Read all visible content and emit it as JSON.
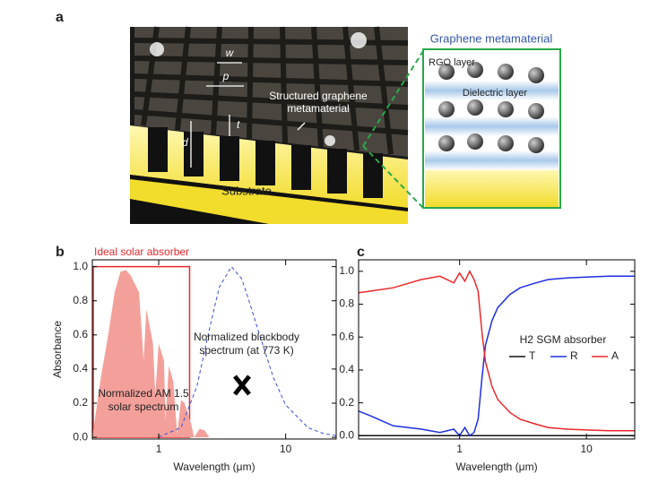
{
  "figure_a": {
    "panel": "a",
    "w": "w",
    "p": "p",
    "t": "t",
    "d": "d",
    "structured": [
      "Structured graphene",
      "metamaterial"
    ],
    "substrate": "Substrate",
    "inset_title": "Graphene metamaterial",
    "rgo": "RGO layer",
    "dielectric": "Dielectric layer"
  },
  "chart_data": [
    {
      "type": "line",
      "panel": "b",
      "xlabel": "Wavelength (μm)",
      "ylabel": "Absorbance",
      "xscale": "log",
      "xlim": [
        0.3,
        25
      ],
      "ylim": [
        -0.01,
        1.04
      ],
      "xticks": [
        1,
        10
      ],
      "yticks": [
        {
          "value": 0,
          "label": "0.0"
        },
        {
          "value": 0.2,
          "label": "0.2"
        },
        {
          "value": 0.4,
          "label": "0.4"
        },
        {
          "value": 0.6,
          "label": "0.6"
        },
        {
          "value": 0.8,
          "label": "0.8"
        },
        {
          "value": 1,
          "label": "1.0"
        }
      ],
      "ideal_absorber": {
        "label": "Ideal solar absorber",
        "x_edge": 1.75,
        "value": 1.0,
        "color": "#e8282b"
      },
      "annotations": [
        [
          "Normalized blackbody",
          "spectrum (at 773 K)"
        ],
        [
          "Normalized AM 1.5",
          "solar spectrum"
        ]
      ],
      "series": [
        {
          "style": "area",
          "color": "#f4a09a",
          "x": [
            0.3,
            0.35,
            0.4,
            0.45,
            0.5,
            0.55,
            0.6,
            0.7,
            0.76,
            0.8,
            0.9,
            0.94,
            1.0,
            1.1,
            1.13,
            1.2,
            1.3,
            1.4,
            1.5,
            1.6,
            1.8,
            1.9,
            2.1,
            2.3,
            2.5
          ],
          "values": [
            0,
            0.35,
            0.6,
            0.85,
            0.97,
            0.98,
            0.95,
            0.85,
            0.45,
            0.75,
            0.55,
            0.25,
            0.55,
            0.45,
            0.1,
            0.42,
            0.33,
            0.02,
            0.22,
            0.2,
            0.08,
            0,
            0.05,
            0.04,
            0
          ]
        },
        {
          "style": "dashed",
          "color": "#3a4fd6",
          "x": [
            1,
            1.5,
            2,
            2.5,
            3,
            3.75,
            4.5,
            5,
            6,
            8,
            10,
            15,
            20,
            25
          ],
          "values": [
            0.001,
            0.057,
            0.3,
            0.63,
            0.88,
            1.0,
            0.93,
            0.83,
            0.64,
            0.35,
            0.19,
            0.056,
            0.021,
            0.01
          ]
        }
      ]
    },
    {
      "type": "line",
      "panel": "c",
      "xlabel": "Wavelength (μm)",
      "xscale": "log",
      "xlim": [
        0.16,
        24
      ],
      "ylim": [
        -0.02,
        1.07
      ],
      "xticks": [
        1,
        10
      ],
      "yticks": [
        {
          "value": 0,
          "label": "0.0"
        },
        {
          "value": 0.2,
          "label": "0.2"
        },
        {
          "value": 0.4,
          "label": "0.4"
        },
        {
          "value": 0.6,
          "label": "0.6"
        },
        {
          "value": 0.8,
          "label": "0.8"
        },
        {
          "value": 1,
          "label": "1.0"
        }
      ],
      "legend_title": "H2 SGM absorber",
      "x": [
        0.16,
        0.2,
        0.3,
        0.5,
        0.7,
        0.9,
        1.0,
        1.1,
        1.2,
        1.3,
        1.4,
        1.5,
        1.6,
        1.8,
        2,
        2.5,
        3,
        4,
        5,
        7,
        10,
        15,
        24
      ],
      "series": [
        {
          "name": "T",
          "color": "#111111",
          "values": [
            0,
            0,
            0,
            0,
            0,
            0,
            0,
            0,
            0,
            0,
            0,
            0,
            0,
            0,
            0,
            0,
            0,
            0,
            0,
            0,
            0,
            0,
            0
          ]
        },
        {
          "name": "R",
          "color": "#1f2fe0",
          "values": [
            0.15,
            0.12,
            0.06,
            0.04,
            0.02,
            0.04,
            0.0,
            0.05,
            0.0,
            0.02,
            0.1,
            0.35,
            0.55,
            0.7,
            0.78,
            0.86,
            0.9,
            0.93,
            0.95,
            0.96,
            0.965,
            0.97,
            0.97
          ]
        },
        {
          "name": "A",
          "color": "#e8282b",
          "values": [
            0.87,
            0.88,
            0.9,
            0.95,
            0.97,
            0.93,
            0.99,
            0.94,
            1.0,
            0.95,
            0.88,
            0.63,
            0.45,
            0.3,
            0.22,
            0.14,
            0.1,
            0.07,
            0.05,
            0.04,
            0.035,
            0.03,
            0.03
          ]
        }
      ]
    }
  ]
}
